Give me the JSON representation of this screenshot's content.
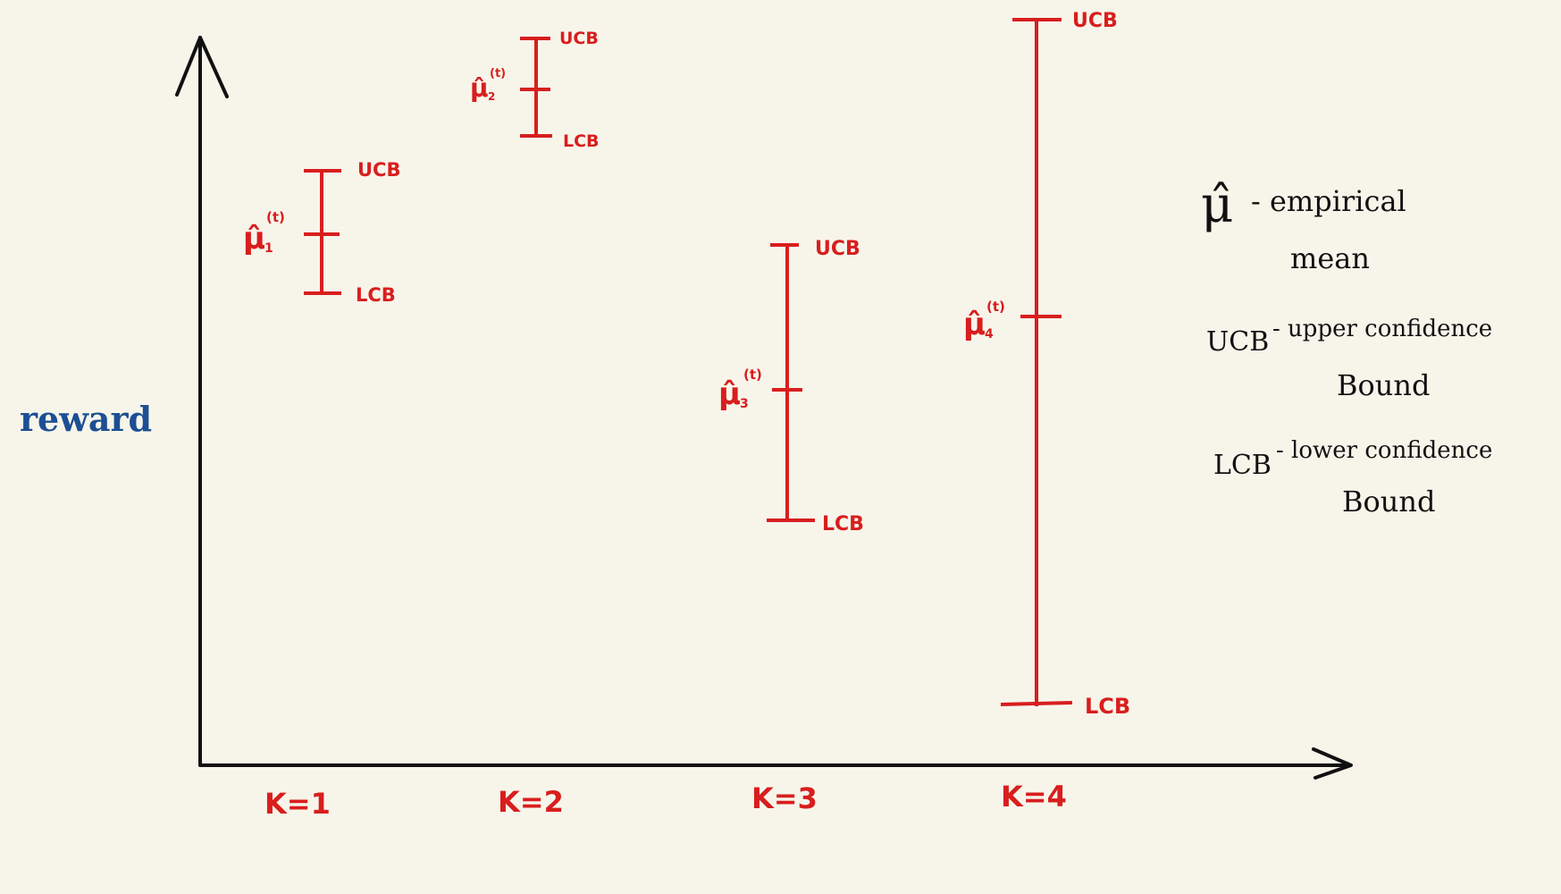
{
  "axis": {
    "ylabel": "reward",
    "colors": {
      "axis": "#111111",
      "ylabel": "#1c4f93"
    }
  },
  "arms": [
    {
      "label": "K=1",
      "estimate": {
        "symbol": "μ̂",
        "sub": "1",
        "sup": "(t)"
      },
      "ucb_label": "UCB",
      "lcb_label": "LCB"
    },
    {
      "label": "K=2",
      "estimate": {
        "symbol": "μ̂",
        "sub": "2",
        "sup": "(t)"
      },
      "ucb_label": "UCB",
      "lcb_label": "LCB"
    },
    {
      "label": "K=3",
      "estimate": {
        "symbol": "μ̂",
        "sub": "3",
        "sup": "(t)"
      },
      "ucb_label": "UCB",
      "lcb_label": "LCB"
    },
    {
      "label": "K=4",
      "estimate": {
        "symbol": "μ̂",
        "sub": "4",
        "sup": "(t)"
      },
      "ucb_label": "UCB",
      "lcb_label": "LCB"
    }
  ],
  "legend": {
    "mu": {
      "symbol": "μ̂",
      "text1": "- empirical",
      "text2": "mean"
    },
    "ucb": {
      "term": "UCB",
      "text1": "- upper confidence",
      "text2": "Bound"
    },
    "lcb": {
      "term": "LCB",
      "text1": "- lower confidence",
      "text2": "Bound"
    }
  },
  "colors": {
    "interval": "#d81e1e",
    "legend_text": "#111111"
  }
}
